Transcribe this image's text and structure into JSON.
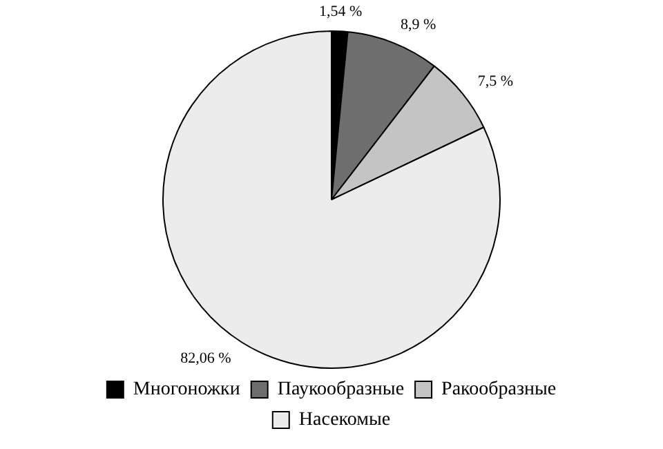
{
  "chart_data": {
    "type": "pie",
    "categories": [
      "Многоножки",
      "Паукообразные",
      "Ракообразные",
      "Насекомые"
    ],
    "values": [
      1.54,
      8.9,
      7.5,
      82.06
    ],
    "colors": [
      "#000000",
      "#6e6e6e",
      "#c4c4c4",
      "#ececec"
    ],
    "value_labels": [
      "1,54 %",
      "8,9 %",
      "7,5 %",
      "82,06 %"
    ],
    "legend": "bottom"
  }
}
